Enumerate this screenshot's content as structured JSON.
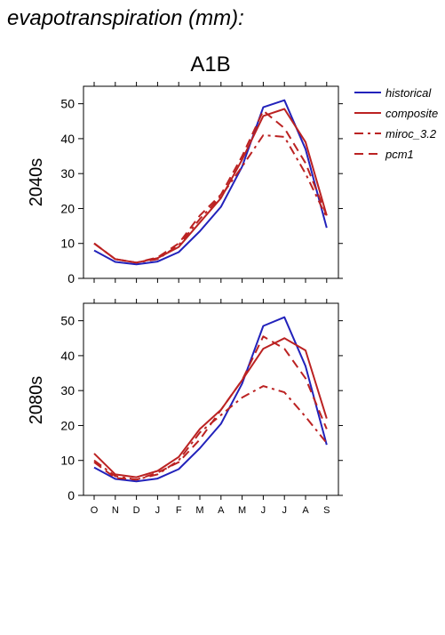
{
  "page_title": "evapotranspiration (mm):",
  "scenario": "A1B",
  "colors": {
    "historical": "#2222bb",
    "composite": "#bb2222",
    "miroc_3.2": "#bb2222",
    "pcm1": "#bb2222",
    "axis": "#000000"
  },
  "chart_data": [
    {
      "type": "line",
      "title": "A1B",
      "ylabel": "2040s",
      "xlabel": "",
      "ylim": [
        0,
        55
      ],
      "yticks": [
        0,
        10,
        20,
        30,
        40,
        50
      ],
      "grid": false,
      "legend_position": "right",
      "categories": [
        "O",
        "N",
        "D",
        "J",
        "F",
        "M",
        "A",
        "M",
        "J",
        "J",
        "A",
        "S"
      ],
      "series": [
        {
          "name": "historical",
          "style": "solid",
          "values": [
            8,
            4.7,
            4,
            4.8,
            7.5,
            13.5,
            20.5,
            32,
            49,
            51,
            37,
            14.5
          ]
        },
        {
          "name": "composite",
          "style": "solid",
          "values": [
            10,
            5.5,
            4.5,
            5.8,
            9,
            16,
            23,
            34,
            46.5,
            48.5,
            39,
            18
          ]
        },
        {
          "name": "miroc_3.2",
          "style": "dashdot",
          "values": [
            10,
            5.5,
            4.5,
            5.5,
            9.5,
            17,
            23.5,
            32,
            41,
            40.5,
            30,
            17.5
          ]
        },
        {
          "name": "pcm1",
          "style": "dashed",
          "values": [
            10,
            5.5,
            4.5,
            6,
            10,
            18,
            24,
            35,
            48,
            43,
            33,
            18
          ]
        }
      ]
    },
    {
      "type": "line",
      "title": "",
      "ylabel": "2080s",
      "xlabel": "",
      "ylim": [
        0,
        55
      ],
      "yticks": [
        0,
        10,
        20,
        30,
        40,
        50
      ],
      "grid": false,
      "categories": [
        "O",
        "N",
        "D",
        "J",
        "F",
        "M",
        "A",
        "M",
        "J",
        "J",
        "A",
        "S"
      ],
      "series": [
        {
          "name": "historical",
          "style": "solid",
          "values": [
            8,
            4.7,
            4,
            4.8,
            7.5,
            13.5,
            20.5,
            32,
            48.5,
            51,
            37,
            14.5
          ]
        },
        {
          "name": "composite",
          "style": "solid",
          "values": [
            12,
            6,
            5.2,
            7,
            11,
            19,
            24.5,
            33,
            42,
            45,
            41.5,
            22
          ]
        },
        {
          "name": "miroc_3.2",
          "style": "dashdot",
          "values": [
            10,
            5.5,
            4.5,
            6,
            10,
            18,
            23,
            28,
            31.3,
            29.5,
            22.5,
            15
          ]
        },
        {
          "name": "pcm1",
          "style": "dashed",
          "values": [
            9.5,
            5,
            4.5,
            6.5,
            9.5,
            16,
            24.5,
            33,
            45.5,
            42,
            33.5,
            19
          ]
        }
      ]
    }
  ]
}
